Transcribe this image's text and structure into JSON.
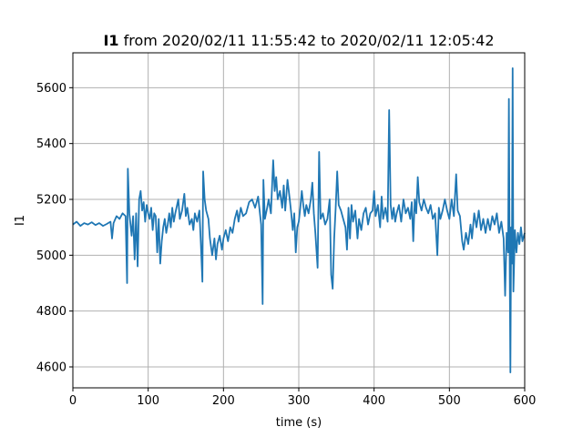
{
  "chart_data": {
    "type": "line",
    "title_bold": "I1",
    "title_rest": " from 2020/02/11 11:55:42 to 2020/02/11 12:05:42",
    "xlabel": "time (s)",
    "ylabel": "I1",
    "xlim": [
      0,
      600
    ],
    "ylim": [
      4525,
      5725
    ],
    "xticks": [
      0,
      100,
      200,
      300,
      400,
      500,
      600
    ],
    "yticks": [
      4600,
      4800,
      5000,
      5200,
      5400,
      5600
    ],
    "grid": true,
    "line_color": "#1f77b4",
    "series": [
      {
        "points": [
          [
            0,
            5110
          ],
          [
            5,
            5120
          ],
          [
            10,
            5105
          ],
          [
            15,
            5115
          ],
          [
            20,
            5110
          ],
          [
            25,
            5118
          ],
          [
            30,
            5108
          ],
          [
            35,
            5115
          ],
          [
            40,
            5105
          ],
          [
            45,
            5112
          ],
          [
            50,
            5120
          ],
          [
            52,
            5060
          ],
          [
            54,
            5115
          ],
          [
            58,
            5140
          ],
          [
            62,
            5130
          ],
          [
            66,
            5150
          ],
          [
            70,
            5140
          ],
          [
            72,
            4900
          ],
          [
            73,
            5310
          ],
          [
            75,
            5150
          ],
          [
            78,
            5070
          ],
          [
            80,
            5140
          ],
          [
            82,
            4985
          ],
          [
            84,
            5150
          ],
          [
            86,
            4960
          ],
          [
            88,
            5200
          ],
          [
            90,
            5230
          ],
          [
            92,
            5160
          ],
          [
            94,
            5190
          ],
          [
            96,
            5120
          ],
          [
            98,
            5180
          ],
          [
            100,
            5150
          ],
          [
            102,
            5130
          ],
          [
            104,
            5170
          ],
          [
            106,
            5090
          ],
          [
            108,
            5150
          ],
          [
            110,
            5140
          ],
          [
            112,
            5010
          ],
          [
            114,
            5130
          ],
          [
            116,
            4970
          ],
          [
            118,
            5050
          ],
          [
            120,
            5100
          ],
          [
            122,
            5130
          ],
          [
            124,
            5080
          ],
          [
            126,
            5110
          ],
          [
            128,
            5150
          ],
          [
            130,
            5100
          ],
          [
            132,
            5170
          ],
          [
            134,
            5120
          ],
          [
            136,
            5150
          ],
          [
            140,
            5200
          ],
          [
            142,
            5130
          ],
          [
            145,
            5160
          ],
          [
            148,
            5220
          ],
          [
            150,
            5140
          ],
          [
            152,
            5170
          ],
          [
            155,
            5110
          ],
          [
            158,
            5130
          ],
          [
            160,
            5090
          ],
          [
            162,
            5150
          ],
          [
            165,
            5120
          ],
          [
            168,
            5160
          ],
          [
            170,
            5040
          ],
          [
            172,
            4905
          ],
          [
            173,
            5300
          ],
          [
            175,
            5200
          ],
          [
            177,
            5160
          ],
          [
            180,
            5130
          ],
          [
            182,
            5060
          ],
          [
            185,
            5000
          ],
          [
            188,
            5060
          ],
          [
            190,
            4985
          ],
          [
            192,
            5040
          ],
          [
            195,
            5070
          ],
          [
            198,
            5020
          ],
          [
            200,
            5060
          ],
          [
            203,
            5090
          ],
          [
            206,
            5050
          ],
          [
            209,
            5100
          ],
          [
            212,
            5080
          ],
          [
            215,
            5130
          ],
          [
            218,
            5160
          ],
          [
            220,
            5120
          ],
          [
            223,
            5170
          ],
          [
            226,
            5140
          ],
          [
            230,
            5150
          ],
          [
            234,
            5190
          ],
          [
            238,
            5200
          ],
          [
            242,
            5170
          ],
          [
            246,
            5210
          ],
          [
            250,
            5110
          ],
          [
            252,
            4825
          ],
          [
            253,
            5270
          ],
          [
            255,
            5130
          ],
          [
            258,
            5170
          ],
          [
            260,
            5200
          ],
          [
            263,
            5150
          ],
          [
            266,
            5340
          ],
          [
            268,
            5230
          ],
          [
            270,
            5280
          ],
          [
            272,
            5200
          ],
          [
            275,
            5230
          ],
          [
            278,
            5170
          ],
          [
            280,
            5250
          ],
          [
            282,
            5160
          ],
          [
            285,
            5270
          ],
          [
            288,
            5200
          ],
          [
            290,
            5150
          ],
          [
            292,
            5090
          ],
          [
            294,
            5150
          ],
          [
            296,
            5010
          ],
          [
            298,
            5100
          ],
          [
            300,
            5120
          ],
          [
            302,
            5170
          ],
          [
            304,
            5230
          ],
          [
            306,
            5180
          ],
          [
            308,
            5140
          ],
          [
            310,
            5180
          ],
          [
            313,
            5150
          ],
          [
            316,
            5200
          ],
          [
            318,
            5260
          ],
          [
            320,
            5150
          ],
          [
            322,
            5080
          ],
          [
            325,
            4955
          ],
          [
            327,
            5370
          ],
          [
            329,
            5130
          ],
          [
            332,
            5150
          ],
          [
            335,
            5110
          ],
          [
            338,
            5130
          ],
          [
            341,
            5200
          ],
          [
            343,
            4930
          ],
          [
            345,
            4880
          ],
          [
            347,
            5060
          ],
          [
            349,
            5170
          ],
          [
            351,
            5300
          ],
          [
            353,
            5180
          ],
          [
            356,
            5160
          ],
          [
            359,
            5130
          ],
          [
            362,
            5100
          ],
          [
            364,
            5020
          ],
          [
            366,
            5170
          ],
          [
            368,
            5060
          ],
          [
            370,
            5180
          ],
          [
            372,
            5120
          ],
          [
            375,
            5160
          ],
          [
            378,
            5060
          ],
          [
            380,
            5130
          ],
          [
            383,
            5090
          ],
          [
            386,
            5150
          ],
          [
            389,
            5170
          ],
          [
            392,
            5110
          ],
          [
            395,
            5150
          ],
          [
            398,
            5160
          ],
          [
            400,
            5230
          ],
          [
            402,
            5140
          ],
          [
            405,
            5180
          ],
          [
            408,
            5100
          ],
          [
            410,
            5210
          ],
          [
            412,
            5130
          ],
          [
            415,
            5170
          ],
          [
            418,
            5120
          ],
          [
            420,
            5520
          ],
          [
            422,
            5180
          ],
          [
            424,
            5130
          ],
          [
            426,
            5170
          ],
          [
            428,
            5120
          ],
          [
            430,
            5150
          ],
          [
            433,
            5180
          ],
          [
            436,
            5120
          ],
          [
            439,
            5200
          ],
          [
            442,
            5150
          ],
          [
            445,
            5170
          ],
          [
            448,
            5130
          ],
          [
            450,
            5190
          ],
          [
            452,
            5050
          ],
          [
            454,
            5200
          ],
          [
            456,
            5150
          ],
          [
            458,
            5280
          ],
          [
            460,
            5190
          ],
          [
            463,
            5160
          ],
          [
            466,
            5200
          ],
          [
            469,
            5170
          ],
          [
            472,
            5150
          ],
          [
            475,
            5180
          ],
          [
            478,
            5130
          ],
          [
            481,
            5150
          ],
          [
            484,
            5000
          ],
          [
            486,
            5170
          ],
          [
            488,
            5130
          ],
          [
            491,
            5160
          ],
          [
            494,
            5200
          ],
          [
            497,
            5160
          ],
          [
            500,
            5130
          ],
          [
            503,
            5200
          ],
          [
            506,
            5140
          ],
          [
            509,
            5290
          ],
          [
            511,
            5160
          ],
          [
            514,
            5140
          ],
          [
            517,
            5050
          ],
          [
            519,
            5020
          ],
          [
            522,
            5080
          ],
          [
            525,
            5040
          ],
          [
            528,
            5110
          ],
          [
            530,
            5060
          ],
          [
            533,
            5150
          ],
          [
            536,
            5100
          ],
          [
            539,
            5160
          ],
          [
            542,
            5090
          ],
          [
            545,
            5130
          ],
          [
            548,
            5080
          ],
          [
            551,
            5130
          ],
          [
            554,
            5090
          ],
          [
            557,
            5140
          ],
          [
            560,
            5110
          ],
          [
            563,
            5150
          ],
          [
            566,
            5080
          ],
          [
            569,
            5120
          ],
          [
            572,
            5060
          ],
          [
            574,
            4855
          ],
          [
            576,
            5080
          ],
          [
            578,
            5010
          ],
          [
            579,
            5560
          ],
          [
            580,
            5000
          ],
          [
            581,
            4580
          ],
          [
            582,
            5100
          ],
          [
            583,
            4970
          ],
          [
            584,
            5670
          ],
          [
            585,
            4870
          ],
          [
            587,
            5090
          ],
          [
            589,
            5010
          ],
          [
            591,
            5080
          ],
          [
            593,
            5040
          ],
          [
            595,
            5100
          ],
          [
            597,
            5050
          ],
          [
            600,
            5080
          ]
        ]
      }
    ]
  }
}
